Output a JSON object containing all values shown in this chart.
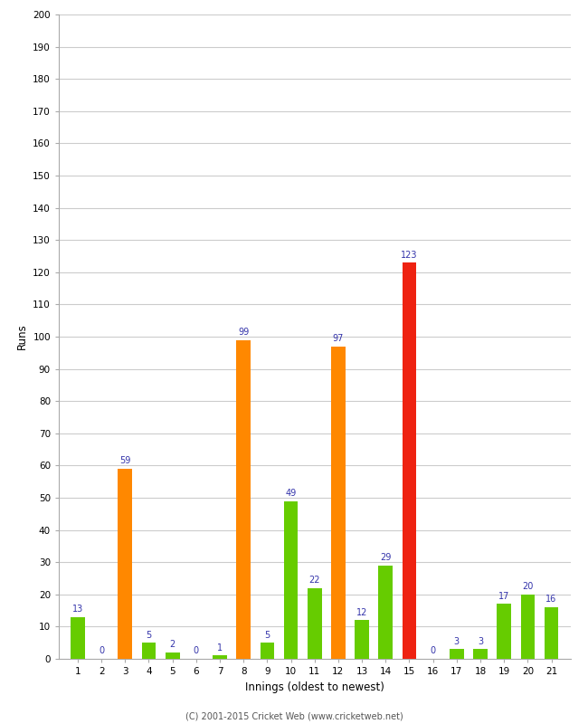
{
  "innings": [
    1,
    2,
    3,
    4,
    5,
    6,
    7,
    8,
    9,
    10,
    11,
    12,
    13,
    14,
    15,
    16,
    17,
    18,
    19,
    20,
    21
  ],
  "runs": [
    13,
    0,
    59,
    5,
    2,
    0,
    1,
    99,
    5,
    49,
    22,
    97,
    12,
    29,
    123,
    0,
    3,
    3,
    17,
    20,
    16
  ],
  "colors": [
    "#66cc00",
    "#66cc00",
    "#ff8800",
    "#66cc00",
    "#66cc00",
    "#66cc00",
    "#66cc00",
    "#ff8800",
    "#66cc00",
    "#66cc00",
    "#66cc00",
    "#ff8800",
    "#66cc00",
    "#66cc00",
    "#ee2211",
    "#66cc00",
    "#66cc00",
    "#66cc00",
    "#66cc00",
    "#66cc00",
    "#66cc00"
  ],
  "ylabel": "Runs",
  "xlabel": "Innings (oldest to newest)",
  "ylim": [
    0,
    200
  ],
  "yticks": [
    0,
    10,
    20,
    30,
    40,
    50,
    60,
    70,
    80,
    90,
    100,
    110,
    120,
    130,
    140,
    150,
    160,
    170,
    180,
    190,
    200
  ],
  "label_color": "#3333aa",
  "bg_color": "#ffffff",
  "grid_color": "#cccccc",
  "footer": "(C) 2001-2015 Cricket Web (www.cricketweb.net)"
}
